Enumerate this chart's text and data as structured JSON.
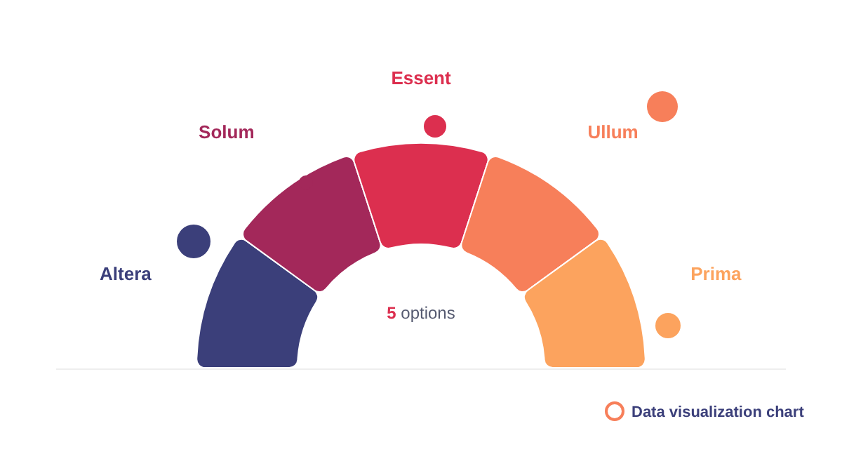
{
  "chart_data": {
    "type": "donut",
    "categories": [
      "Altera",
      "Solum",
      "Essent",
      "Ullum",
      "Prima"
    ],
    "values": [
      20,
      20,
      20,
      20,
      20
    ],
    "colors": [
      "#3b3f7a",
      "#a3285a",
      "#dc2f4f",
      "#f77f5a",
      "#fca35e"
    ],
    "annotations": [
      "5 options",
      "Data visualization chart"
    ]
  }
}
